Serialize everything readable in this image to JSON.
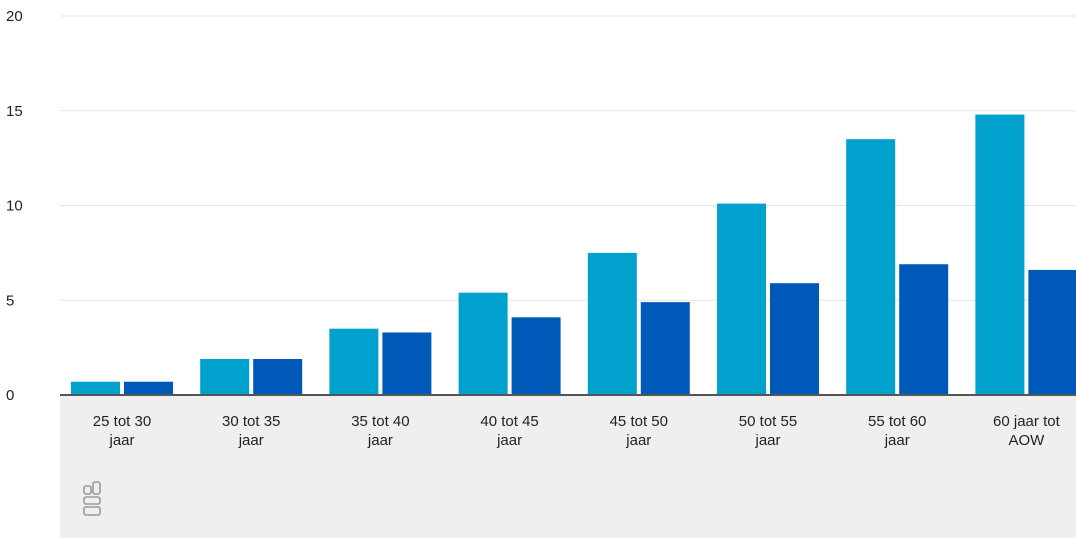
{
  "chart_data": {
    "type": "bar",
    "title": "",
    "xlabel": "",
    "ylabel": "",
    "ylim": [
      0,
      20
    ],
    "yticks": [
      0,
      5,
      10,
      15,
      20
    ],
    "grid": true,
    "categories": [
      [
        "25 tot 30",
        "jaar"
      ],
      [
        "30 tot 35",
        "jaar"
      ],
      [
        "35 tot 40",
        "jaar"
      ],
      [
        "40 tot 45",
        "jaar"
      ],
      [
        "45 tot 50",
        "jaar"
      ],
      [
        "50 tot 55",
        "jaar"
      ],
      [
        "55 tot 60",
        "jaar"
      ],
      [
        "60 jaar tot",
        "AOW"
      ]
    ],
    "series": [
      {
        "color": "#00a1cd",
        "values": [
          0.7,
          1.9,
          3.5,
          5.4,
          7.5,
          10.1,
          13.5,
          14.8
        ]
      },
      {
        "color": "#0058b8",
        "values": [
          0.7,
          1.9,
          3.3,
          4.1,
          4.9,
          5.9,
          6.9,
          6.6
        ]
      }
    ]
  },
  "logo": {
    "icon": "cbs-logo-icon"
  }
}
